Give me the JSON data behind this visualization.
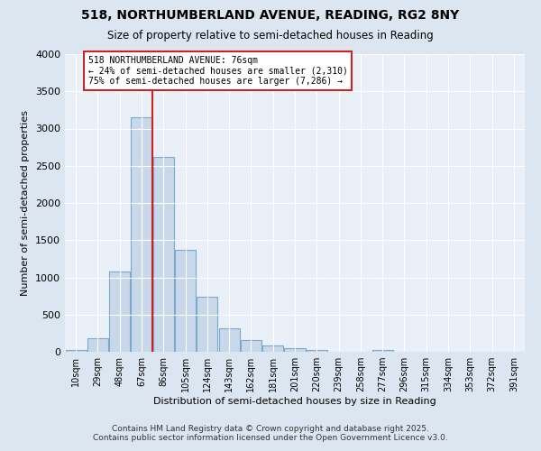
{
  "title": "518, NORTHUMBERLAND AVENUE, READING, RG2 8NY",
  "subtitle": "Size of property relative to semi-detached houses in Reading",
  "xlabel": "Distribution of semi-detached houses by size in Reading",
  "ylabel": "Number of semi-detached properties",
  "bar_labels": [
    "10sqm",
    "29sqm",
    "48sqm",
    "67sqm",
    "86sqm",
    "105sqm",
    "124sqm",
    "143sqm",
    "162sqm",
    "181sqm",
    "201sqm",
    "220sqm",
    "239sqm",
    "258sqm",
    "277sqm",
    "296sqm",
    "315sqm",
    "334sqm",
    "353sqm",
    "372sqm",
    "391sqm"
  ],
  "bar_values": [
    30,
    180,
    1080,
    3150,
    2620,
    1370,
    740,
    310,
    155,
    80,
    45,
    30,
    0,
    0,
    20,
    0,
    0,
    0,
    0,
    0,
    0
  ],
  "bar_color": "#c8d8ea",
  "bar_edge_color": "#7aaac8",
  "vline_color": "#cc2222",
  "annotation_text": "518 NORTHUMBERLAND AVENUE: 76sqm\n← 24% of semi-detached houses are smaller (2,310)\n75% of semi-detached houses are larger (7,286) →",
  "annotation_box_color": "white",
  "annotation_box_edge_color": "#cc2222",
  "ylim": [
    0,
    4000
  ],
  "background_color": "#dce6f0",
  "plot_background_color": "#eaf0f8",
  "footer_line1": "Contains HM Land Registry data © Crown copyright and database right 2025.",
  "footer_line2": "Contains public sector information licensed under the Open Government Licence v3.0."
}
